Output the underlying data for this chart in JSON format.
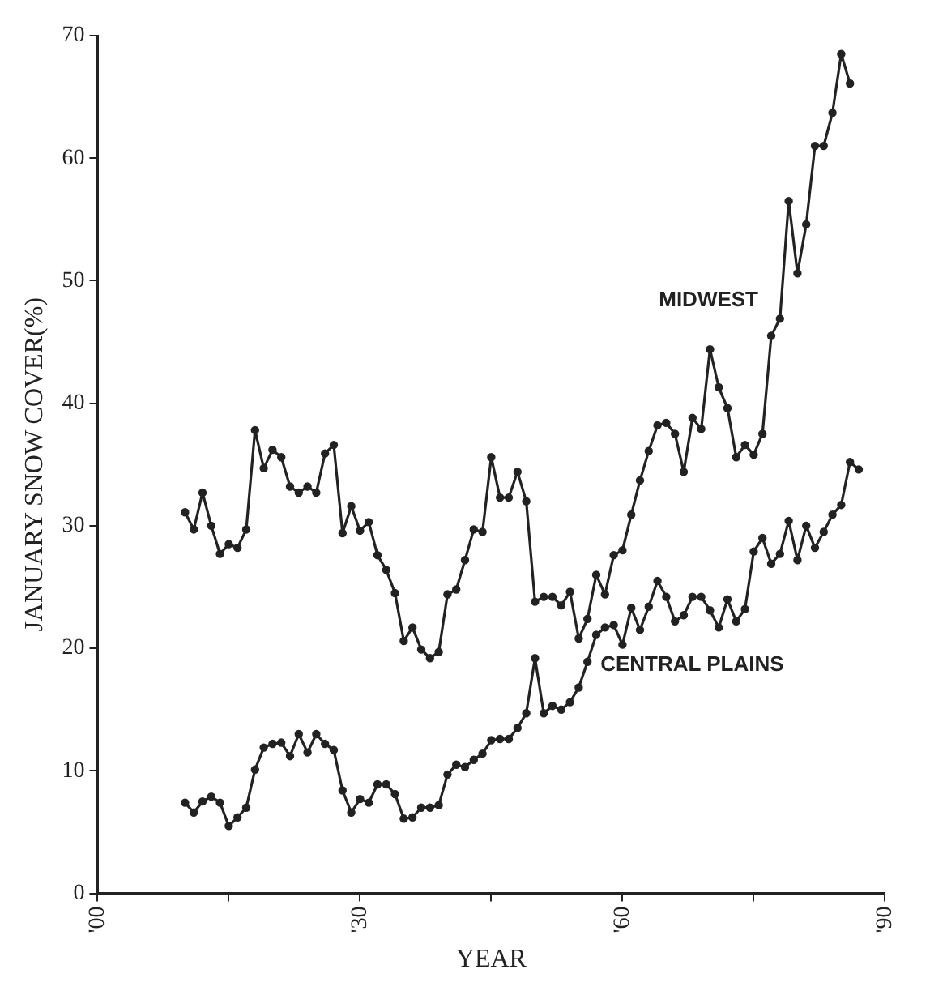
{
  "chart_data": {
    "type": "line",
    "xlabel": "YEAR",
    "ylabel": "JANUARY SNOW COVER(%)",
    "xlim": [
      1900,
      1990
    ],
    "ylim": [
      0,
      70
    ],
    "xticks": [
      {
        "value": 1900,
        "label": "'00"
      },
      {
        "value": 1915,
        "label": null
      },
      {
        "value": 1930,
        "label": "'30"
      },
      {
        "value": 1945,
        "label": null
      },
      {
        "value": 1960,
        "label": "'60"
      },
      {
        "value": 1975,
        "label": null
      },
      {
        "value": 1990,
        "label": "'90"
      }
    ],
    "yticks": [
      0,
      10,
      20,
      30,
      40,
      50,
      60,
      70
    ],
    "grid": false,
    "legend": false,
    "marker": "circle",
    "line_style": "solid",
    "series": [
      {
        "name": "MIDWEST",
        "color": "#222222",
        "x": [
          1910,
          1911,
          1912,
          1913,
          1914,
          1915,
          1916,
          1917,
          1918,
          1919,
          1920,
          1921,
          1922,
          1923,
          1924,
          1925,
          1926,
          1927,
          1928,
          1929,
          1930,
          1931,
          1932,
          1933,
          1934,
          1935,
          1936,
          1937,
          1938,
          1939,
          1940,
          1941,
          1942,
          1943,
          1944,
          1945,
          1946,
          1947,
          1948,
          1949,
          1950,
          1951,
          1952,
          1953,
          1954,
          1955,
          1956,
          1957,
          1958,
          1959,
          1960,
          1961,
          1962,
          1963,
          1964,
          1965,
          1966,
          1967,
          1968,
          1969,
          1970,
          1971,
          1972,
          1973,
          1974,
          1975,
          1976,
          1977,
          1978,
          1979,
          1980,
          1981,
          1982,
          1983,
          1984,
          1985,
          1986
        ],
        "values": [
          31.1,
          29.7,
          32.7,
          30.0,
          27.7,
          28.5,
          28.2,
          29.7,
          37.8,
          34.7,
          36.2,
          35.6,
          33.2,
          32.7,
          33.2,
          32.7,
          35.9,
          36.6,
          29.4,
          31.6,
          29.6,
          30.3,
          27.6,
          26.4,
          24.5,
          20.6,
          21.7,
          19.9,
          19.2,
          19.7,
          24.4,
          24.8,
          27.2,
          29.7,
          29.5,
          35.6,
          32.3,
          32.3,
          34.4,
          32.0,
          23.8,
          24.2,
          24.2,
          23.5,
          24.6,
          20.8,
          22.4,
          26.0,
          24.4,
          27.6,
          28.0,
          30.9,
          33.7,
          36.1,
          38.2,
          38.4,
          37.5,
          34.4,
          38.8,
          37.9,
          44.4,
          41.3,
          39.6,
          35.6,
          36.6,
          35.8,
          37.5,
          45.5,
          46.9,
          56.5,
          50.6,
          54.6,
          61.0,
          61.0,
          63.7,
          68.5,
          66.1
        ]
      },
      {
        "name": "CENTRAL PLAINS",
        "color": "#222222",
        "x": [
          1910,
          1911,
          1912,
          1913,
          1914,
          1915,
          1916,
          1917,
          1918,
          1919,
          1920,
          1921,
          1922,
          1923,
          1924,
          1925,
          1926,
          1927,
          1928,
          1929,
          1930,
          1931,
          1932,
          1933,
          1934,
          1935,
          1936,
          1937,
          1938,
          1939,
          1940,
          1941,
          1942,
          1943,
          1944,
          1945,
          1946,
          1947,
          1948,
          1949,
          1950,
          1951,
          1952,
          1953,
          1954,
          1955,
          1956,
          1957,
          1958,
          1959,
          1960,
          1961,
          1962,
          1963,
          1964,
          1965,
          1966,
          1967,
          1968,
          1969,
          1970,
          1971,
          1972,
          1973,
          1974,
          1975,
          1976,
          1977,
          1978,
          1979,
          1980,
          1981,
          1982,
          1983,
          1984,
          1985,
          1986,
          1987
        ],
        "values": [
          7.4,
          6.6,
          7.5,
          7.9,
          7.4,
          5.5,
          6.2,
          7.0,
          10.1,
          11.9,
          12.2,
          12.3,
          11.2,
          13.0,
          11.5,
          13.0,
          12.2,
          11.7,
          8.4,
          6.6,
          7.7,
          7.4,
          8.9,
          8.9,
          8.1,
          6.1,
          6.2,
          7.0,
          7.0,
          7.2,
          9.7,
          10.5,
          10.3,
          10.9,
          11.4,
          12.5,
          12.6,
          12.6,
          13.5,
          14.7,
          19.2,
          14.7,
          15.3,
          15.0,
          15.6,
          16.8,
          18.9,
          21.1,
          21.7,
          21.9,
          20.3,
          23.3,
          21.5,
          23.4,
          25.5,
          24.2,
          22.2,
          22.7,
          24.2,
          24.2,
          23.1,
          21.7,
          24.0,
          22.2,
          23.2,
          27.9,
          29.0,
          26.9,
          27.7,
          30.4,
          27.2,
          30.0,
          28.2,
          29.5,
          30.9,
          31.7,
          35.2,
          34.6
        ]
      }
    ]
  }
}
